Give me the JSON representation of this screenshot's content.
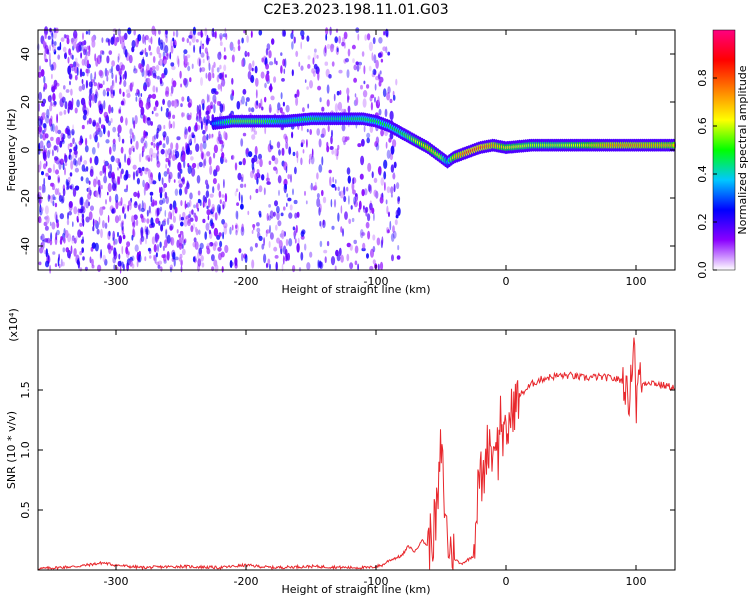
{
  "figure": {
    "title": "C2E3.2023.198.11.01.G03"
  },
  "chart_data": [
    {
      "type": "heatmap",
      "title": "C2E3.2023.198.11.01.G03",
      "xlabel": "Height of straight line (km)",
      "ylabel": "Frequency (Hz)",
      "xlim": [
        -360,
        130
      ],
      "ylim": [
        -50,
        50
      ],
      "xticks": [
        -300,
        -200,
        -100,
        0,
        100
      ],
      "yticks": [
        -40,
        -20,
        0,
        20,
        40
      ],
      "colorbar": {
        "label": "Normalized spectral amplitude",
        "range": [
          0,
          1
        ],
        "ticks": [
          "0.0",
          "0.2",
          "0.4",
          "0.6",
          "0.8"
        ],
        "colormap": [
          "#ffffff",
          "#8a00ff",
          "#0000ff",
          "#00c8ff",
          "#00ff00",
          "#ffff00",
          "#ff8000",
          "#ff0000",
          "#ff0080"
        ]
      },
      "ridge": {
        "description_free": true,
        "x": [
          -225,
          -210,
          -190,
          -170,
          -150,
          -130,
          -110,
          -100,
          -90,
          -80,
          -70,
          -60,
          -50,
          -45,
          -40,
          -30,
          -20,
          -10,
          0,
          20,
          40,
          60,
          80,
          100,
          130
        ],
        "y": [
          11,
          12,
          12,
          12,
          13,
          13,
          13,
          12,
          10,
          7,
          4,
          1,
          -3,
          -5,
          -3,
          -1,
          1,
          2,
          1,
          2,
          2,
          2,
          2,
          2,
          2
        ],
        "amplitude": [
          0.35,
          0.55,
          0.55,
          0.45,
          0.5,
          0.45,
          0.5,
          0.5,
          0.5,
          0.5,
          0.6,
          0.7,
          0.6,
          0.4,
          0.7,
          0.8,
          0.8,
          0.75,
          0.65,
          0.6,
          0.6,
          0.65,
          0.75,
          0.75,
          0.7
        ]
      }
    },
    {
      "type": "line",
      "xlabel": "Height of straight line (km)",
      "ylabel": "SNR (10 * v/v)",
      "yscale_label": "(x10⁴)",
      "xlim": [
        -360,
        130
      ],
      "ylim": [
        0,
        2
      ],
      "xticks": [
        -300,
        -200,
        -100,
        0,
        100
      ],
      "yticks": [
        0.5,
        1.0,
        1.5
      ],
      "ytick_labels": [
        "0.5",
        "1.0",
        "1.5"
      ],
      "series": [
        {
          "color": "#e8282d",
          "x": [
            -360,
            -330,
            -310,
            -300,
            -280,
            -250,
            -220,
            -200,
            -180,
            -150,
            -120,
            -105,
            -100,
            -95,
            -90,
            -80,
            -75,
            -70,
            -65,
            -60,
            -55,
            -52,
            -50,
            -48,
            -46,
            -44,
            -40,
            -35,
            -30,
            -25,
            -22,
            -20,
            -18,
            -15,
            -12,
            -10,
            -8,
            -6,
            -4,
            -2,
            0,
            5,
            10,
            15,
            20,
            25,
            30,
            40,
            50,
            60,
            70,
            80,
            90,
            95,
            97,
            99,
            100,
            102,
            105,
            110,
            120,
            130
          ],
          "y": [
            0.01,
            0.03,
            0.06,
            0.04,
            0.02,
            0.03,
            0.02,
            0.04,
            0.02,
            0.03,
            0.02,
            0.02,
            0.03,
            0.04,
            0.08,
            0.12,
            0.2,
            0.15,
            0.25,
            0.2,
            0.35,
            0.6,
            1.05,
            0.7,
            0.35,
            0.2,
            0.1,
            0.05,
            0.08,
            0.12,
            0.6,
            0.85,
            0.7,
            1.0,
            1.1,
            0.9,
            1.2,
            0.95,
            1.35,
            1.05,
            1.1,
            1.35,
            1.45,
            1.5,
            1.55,
            1.58,
            1.6,
            1.62,
            1.62,
            1.6,
            1.61,
            1.6,
            1.58,
            1.4,
            1.75,
            1.95,
            1.3,
            1.65,
            1.55,
            1.57,
            1.54,
            1.52
          ]
        }
      ]
    }
  ]
}
